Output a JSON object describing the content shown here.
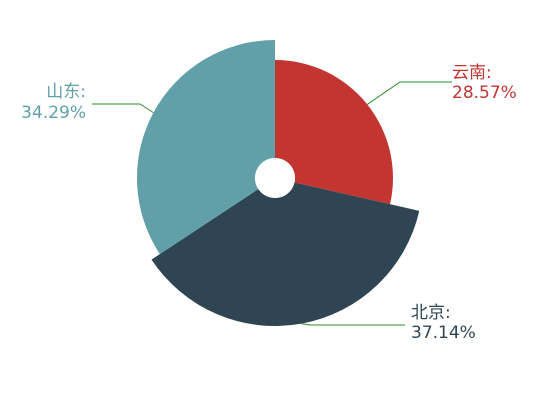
{
  "chart_data": {
    "type": "pie",
    "variant": "rose-donut",
    "slices": [
      {
        "name": "云南",
        "value": 28.57,
        "percent_label": "28.57%",
        "color": "#c23531"
      },
      {
        "name": "北京",
        "value": 37.14,
        "percent_label": "37.14%",
        "color": "#2f4554"
      },
      {
        "name": "山东",
        "value": 34.29,
        "percent_label": "34.29%",
        "color": "#61a0a8"
      }
    ],
    "leader_line_color": "#2e8b2e"
  }
}
